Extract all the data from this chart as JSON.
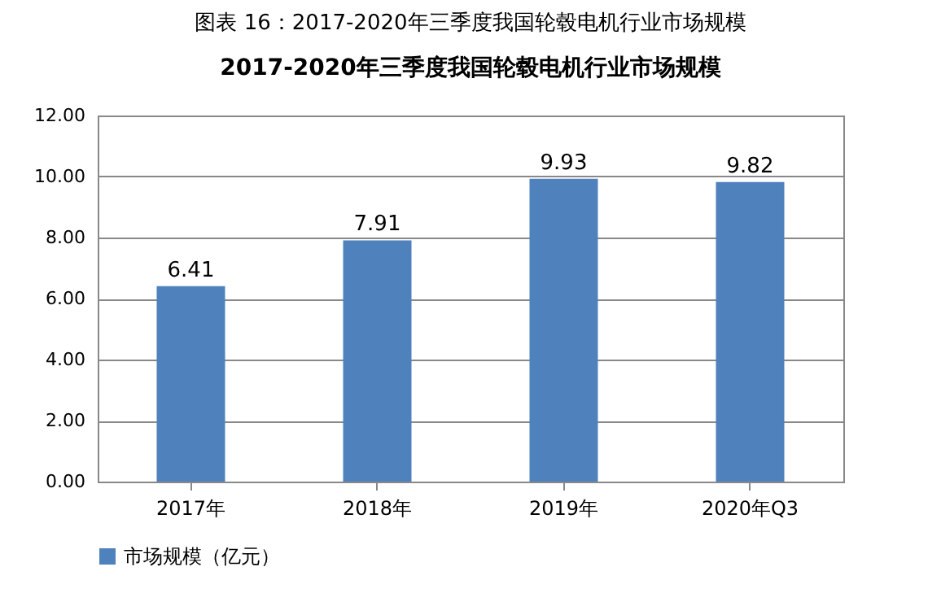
{
  "chart_data": {
    "type": "bar",
    "title": "图表 16：2017-2020年三季度我国轮毂电机行业市场规模",
    "subtitle": "2017-2020年三季度我国轮毂电机行业市场规模",
    "categories": [
      "2017年",
      "2018年",
      "2019年",
      "2020年Q3"
    ],
    "series": [
      {
        "name": "市场规模（亿元）",
        "color": "#4f81bd",
        "values": [
          6.41,
          7.91,
          9.93,
          9.82
        ]
      }
    ],
    "ylim": [
      0,
      12
    ],
    "yticks": [
      {
        "value": 0,
        "label": "0.00"
      },
      {
        "value": 2,
        "label": "2.00"
      },
      {
        "value": 4,
        "label": "4.00"
      },
      {
        "value": 6,
        "label": "6.00"
      },
      {
        "value": 8,
        "label": "8.00"
      },
      {
        "value": 10,
        "label": "10.00"
      },
      {
        "value": 12,
        "label": "12.00"
      }
    ],
    "grid": "y",
    "legend": "bottom",
    "data_labels": true
  }
}
